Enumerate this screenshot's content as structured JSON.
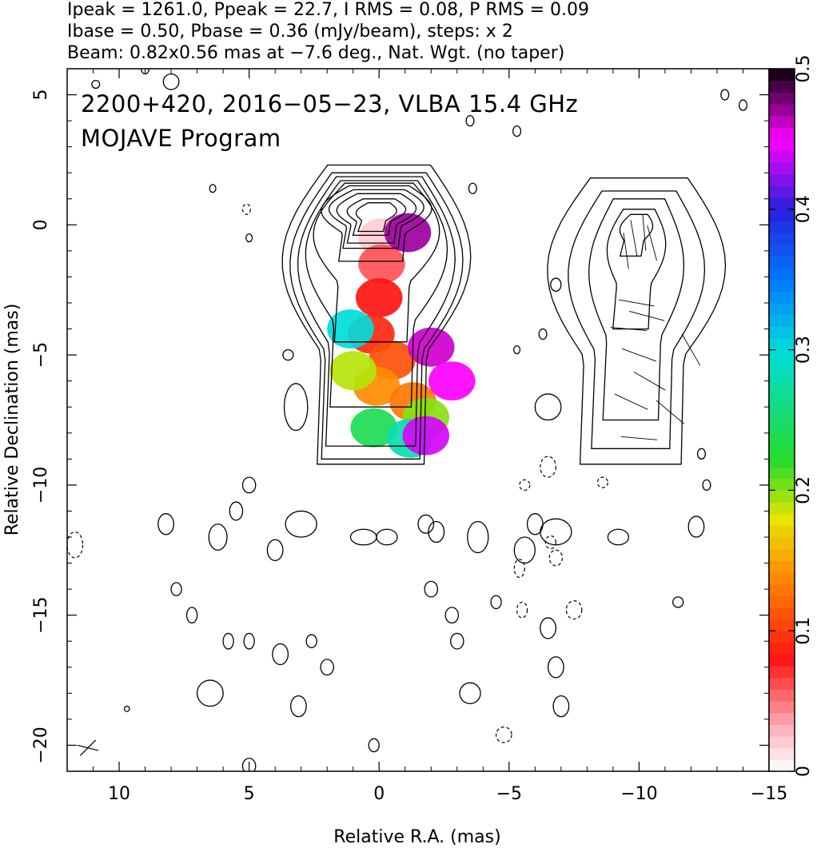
{
  "header": {
    "line1": "Ipeak = 1261.0, Ppeak = 22.7, I RMS = 0.08, P RMS = 0.09",
    "line2": "Ibase = 0.50, Pbase = 0.36 (mJy/beam), steps: x 2",
    "line3": "Beam: 0.82x0.56 mas at −7.6 deg., Nat. Wgt. (no taper)"
  },
  "annotation": {
    "line1": "2200+420, 2016−05−23, VLBA 15.4 GHz",
    "line2": "MOJAVE Program"
  },
  "chart_data": {
    "type": "heatmap",
    "title": "2200+420, 2016−05−23, VLBA 15.4 GHz",
    "subtitle": "MOJAVE Program",
    "xlabel": "Relative R.A. (mas)",
    "ylabel": "Relative Declination (mas)",
    "xlim": [
      12,
      -15
    ],
    "ylim": [
      -21,
      6
    ],
    "x_ticks": [
      {
        "value": 10,
        "label": "10"
      },
      {
        "value": 5,
        "label": "5"
      },
      {
        "value": 0,
        "label": "0"
      },
      {
        "value": -5,
        "label": "−5"
      },
      {
        "value": -10,
        "label": "−10"
      },
      {
        "value": -15,
        "label": "−15"
      }
    ],
    "y_ticks": [
      {
        "value": 5,
        "label": "5"
      },
      {
        "value": 0,
        "label": "0"
      },
      {
        "value": -5,
        "label": "−5"
      },
      {
        "value": -10,
        "label": "−10"
      },
      {
        "value": -15,
        "label": "−15"
      },
      {
        "value": -20,
        "label": "−20"
      }
    ],
    "colorbar": {
      "range": [
        0,
        0.5
      ],
      "ticks": [
        {
          "value": 0,
          "label": "0"
        },
        {
          "value": 0.1,
          "label": "0.1"
        },
        {
          "value": 0.2,
          "label": "0.2"
        },
        {
          "value": 0.3,
          "label": "0.3"
        },
        {
          "value": 0.4,
          "label": "0.4"
        },
        {
          "value": 0.5,
          "label": "0.5"
        }
      ]
    },
    "total_intensity_image": {
      "center": [
        0,
        0
      ],
      "contour_widths": [
        0.75,
        1.1,
        1.5,
        1.8,
        2.1,
        2.4,
        2.7,
        3.0,
        3.3,
        3.6
      ],
      "contour_tops": [
        0.85,
        1.0,
        1.2,
        1.35,
        1.5,
        1.6,
        1.7,
        1.85,
        2.0,
        2.3
      ],
      "contour_bottoms": [
        -0.25,
        -0.4,
        -0.7,
        -0.9,
        -1.4,
        -4.5,
        -7.0,
        -8.5,
        -9.0,
        -9.2
      ]
    },
    "polarization_image": {
      "center": [
        -10,
        0
      ],
      "evpa_vectors": [
        {
          "x": -9.8,
          "y": -0.5,
          "angle": 10
        },
        {
          "x": -10.2,
          "y": -0.3,
          "angle": 5
        },
        {
          "x": -10.5,
          "y": -0.7,
          "angle": 15
        },
        {
          "x": -9.5,
          "y": -1.0,
          "angle": 8
        },
        {
          "x": -9.9,
          "y": -3.0,
          "angle": 80
        },
        {
          "x": -10.3,
          "y": -3.5,
          "angle": 75
        },
        {
          "x": -9.6,
          "y": -4.0,
          "angle": 85
        },
        {
          "x": -10.0,
          "y": -5.0,
          "angle": 70
        },
        {
          "x": -10.4,
          "y": -6.0,
          "angle": 60
        },
        {
          "x": -9.7,
          "y": -6.8,
          "angle": 65
        },
        {
          "x": -11.2,
          "y": -7.2,
          "angle": 50
        },
        {
          "x": -10.0,
          "y": -8.2,
          "angle": 85
        },
        {
          "x": -12.0,
          "y": -4.8,
          "angle": 30
        }
      ]
    },
    "fractional_pol_patches": [
      {
        "x": -0.1,
        "y": -0.5,
        "v": 0.02
      },
      {
        "x": -0.1,
        "y": -1.5,
        "v": 0.06
      },
      {
        "x": 0.0,
        "y": -2.8,
        "v": 0.08
      },
      {
        "x": 0.3,
        "y": -4.2,
        "v": 0.09
      },
      {
        "x": -0.5,
        "y": -5.2,
        "v": 0.11
      },
      {
        "x": 0.1,
        "y": -6.2,
        "v": 0.14
      },
      {
        "x": 1.0,
        "y": -5.6,
        "v": 0.19
      },
      {
        "x": -1.3,
        "y": -6.8,
        "v": 0.13
      },
      {
        "x": -1.8,
        "y": -7.4,
        "v": 0.2
      },
      {
        "x": 0.2,
        "y": -7.8,
        "v": 0.24
      },
      {
        "x": -1.2,
        "y": -8.2,
        "v": 0.28
      },
      {
        "x": 1.1,
        "y": -4.0,
        "v": 0.3
      },
      {
        "x": -2.0,
        "y": -4.7,
        "v": 0.46
      },
      {
        "x": -2.8,
        "y": -6.0,
        "v": 0.45
      },
      {
        "x": -1.8,
        "y": -8.1,
        "v": 0.44
      },
      {
        "x": -1.1,
        "y": -0.3,
        "v": 0.47
      }
    ]
  }
}
